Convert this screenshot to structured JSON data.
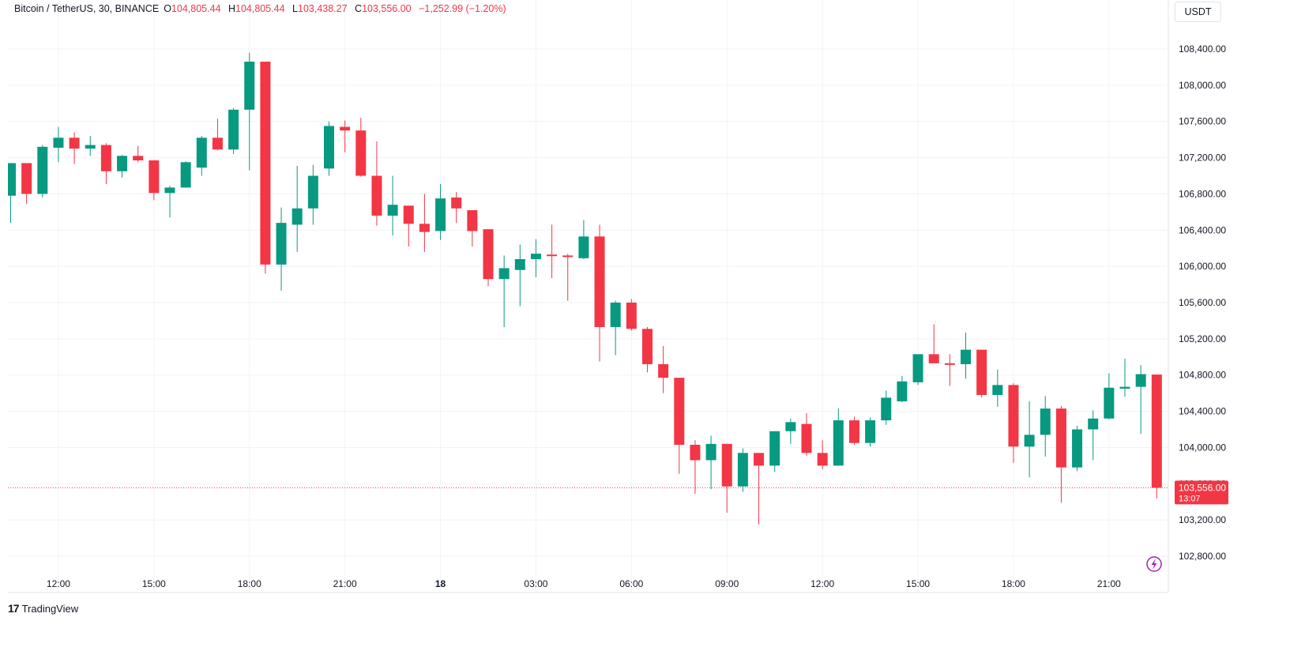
{
  "legend": {
    "symbol": "Bitcoin / TetherUS, 30, BINANCE",
    "o_label": "O",
    "o": "104,805.44",
    "h_label": "H",
    "h": "104,805.44",
    "l_label": "L",
    "l": "103,438.27",
    "c_label": "C",
    "c": "103,556.00",
    "change": "−1,252.99 (−1.20%)"
  },
  "currency": "USDT",
  "logo": {
    "mark": "17",
    "text": "TradingView"
  },
  "last_price": {
    "value": "103,556.00",
    "countdown": "13:07"
  },
  "colors": {
    "up": "#089981",
    "down": "#f23645",
    "grid": "#f0f3fa",
    "axis_text": "#131722"
  },
  "icons": {
    "flash": "lightning-icon"
  },
  "chart_data": {
    "type": "candlestick",
    "interval_minutes": 30,
    "ylim": [
      102700,
      108650
    ],
    "y_ticks": [
      102800,
      103200,
      103600,
      104000,
      104400,
      104800,
      105200,
      105600,
      106000,
      106400,
      106800,
      107200,
      107600,
      108000,
      108400
    ],
    "y_tick_labels": [
      "102,800.00",
      "103,200.00",
      "103,600.00",
      "104,000.00",
      "104,400.00",
      "104,800.00",
      "105,200.00",
      "105,600.00",
      "106,000.00",
      "106,400.00",
      "106,800.00",
      "107,200.00",
      "107,600.00",
      "108,000.00",
      "108,400.00"
    ],
    "x_ticks": [
      {
        "time": "12:00",
        "label": "12:00",
        "bold": false
      },
      {
        "time": "15:00",
        "label": "15:00",
        "bold": false
      },
      {
        "time": "18:00",
        "label": "18:00",
        "bold": false
      },
      {
        "time": "21:00",
        "label": "21:00",
        "bold": false
      },
      {
        "time": "00:00",
        "label": "18",
        "bold": true
      },
      {
        "time": "03:00",
        "label": "03:00",
        "bold": false
      },
      {
        "time": "06:00",
        "label": "06:00",
        "bold": false
      },
      {
        "time": "09:00",
        "label": "09:00",
        "bold": false
      },
      {
        "time": "12:00",
        "label": "12:00",
        "bold": false
      },
      {
        "time": "15:00",
        "label": "15:00",
        "bold": false
      },
      {
        "time": "18:00",
        "label": "18:00",
        "bold": false
      },
      {
        "time": "21:00",
        "label": "21:00",
        "bold": false
      }
    ],
    "first_bar_time": "10:30",
    "candles": [
      {
        "o": 106780,
        "h": 107140,
        "l": 106480,
        "c": 107140
      },
      {
        "o": 107140,
        "h": 107140,
        "l": 106690,
        "c": 106800
      },
      {
        "o": 106800,
        "h": 107340,
        "l": 106760,
        "c": 107320
      },
      {
        "o": 107310,
        "h": 107540,
        "l": 107150,
        "c": 107420
      },
      {
        "o": 107420,
        "h": 107480,
        "l": 107130,
        "c": 107300
      },
      {
        "o": 107300,
        "h": 107440,
        "l": 107220,
        "c": 107340
      },
      {
        "o": 107340,
        "h": 107360,
        "l": 106910,
        "c": 107050
      },
      {
        "o": 107050,
        "h": 107230,
        "l": 106980,
        "c": 107220
      },
      {
        "o": 107220,
        "h": 107330,
        "l": 107150,
        "c": 107170
      },
      {
        "o": 107170,
        "h": 107170,
        "l": 106730,
        "c": 106810
      },
      {
        "o": 106810,
        "h": 106890,
        "l": 106540,
        "c": 106870
      },
      {
        "o": 106870,
        "h": 107160,
        "l": 106870,
        "c": 107150
      },
      {
        "o": 107090,
        "h": 107440,
        "l": 107000,
        "c": 107420
      },
      {
        "o": 107420,
        "h": 107630,
        "l": 107280,
        "c": 107290
      },
      {
        "o": 107290,
        "h": 107750,
        "l": 107240,
        "c": 107730
      },
      {
        "o": 107730,
        "h": 108360,
        "l": 107060,
        "c": 108260
      },
      {
        "o": 108260,
        "h": 108260,
        "l": 105920,
        "c": 106020
      },
      {
        "o": 106020,
        "h": 106650,
        "l": 105730,
        "c": 106480
      },
      {
        "o": 106460,
        "h": 107110,
        "l": 106160,
        "c": 106640
      },
      {
        "o": 106640,
        "h": 107120,
        "l": 106460,
        "c": 107000
      },
      {
        "o": 107080,
        "h": 107600,
        "l": 107000,
        "c": 107550
      },
      {
        "o": 107540,
        "h": 107610,
        "l": 107260,
        "c": 107500
      },
      {
        "o": 107500,
        "h": 107640,
        "l": 106990,
        "c": 107000
      },
      {
        "o": 107000,
        "h": 107380,
        "l": 106450,
        "c": 106560
      },
      {
        "o": 106560,
        "h": 107000,
        "l": 106340,
        "c": 106680
      },
      {
        "o": 106670,
        "h": 106670,
        "l": 106220,
        "c": 106470
      },
      {
        "o": 106470,
        "h": 106800,
        "l": 106160,
        "c": 106380
      },
      {
        "o": 106390,
        "h": 106910,
        "l": 106290,
        "c": 106750
      },
      {
        "o": 106760,
        "h": 106820,
        "l": 106480,
        "c": 106640
      },
      {
        "o": 106620,
        "h": 106620,
        "l": 106220,
        "c": 106390
      },
      {
        "o": 106410,
        "h": 106400,
        "l": 105780,
        "c": 105860
      },
      {
        "o": 105860,
        "h": 106120,
        "l": 105330,
        "c": 105980
      },
      {
        "o": 105960,
        "h": 106240,
        "l": 105560,
        "c": 106080
      },
      {
        "o": 106080,
        "h": 106300,
        "l": 105880,
        "c": 106140
      },
      {
        "o": 106130,
        "h": 106460,
        "l": 105870,
        "c": 106120
      },
      {
        "o": 106120,
        "h": 106140,
        "l": 105620,
        "c": 106110
      },
      {
        "o": 106090,
        "h": 106510,
        "l": 106080,
        "c": 106330
      },
      {
        "o": 106330,
        "h": 106460,
        "l": 104950,
        "c": 105330
      },
      {
        "o": 105330,
        "h": 105620,
        "l": 105020,
        "c": 105600
      },
      {
        "o": 105600,
        "h": 105640,
        "l": 105290,
        "c": 105310
      },
      {
        "o": 105310,
        "h": 105330,
        "l": 104830,
        "c": 104920
      },
      {
        "o": 104920,
        "h": 105120,
        "l": 104600,
        "c": 104770
      },
      {
        "o": 104770,
        "h": 104770,
        "l": 103710,
        "c": 104030
      },
      {
        "o": 104030,
        "h": 104080,
        "l": 103490,
        "c": 103860
      },
      {
        "o": 103860,
        "h": 104130,
        "l": 103540,
        "c": 104040
      },
      {
        "o": 104040,
        "h": 104040,
        "l": 103280,
        "c": 103570
      },
      {
        "o": 103570,
        "h": 103990,
        "l": 103510,
        "c": 103940
      },
      {
        "o": 103940,
        "h": 103940,
        "l": 103150,
        "c": 103800
      },
      {
        "o": 103800,
        "h": 104180,
        "l": 103730,
        "c": 104180
      },
      {
        "o": 104180,
        "h": 104320,
        "l": 104040,
        "c": 104280
      },
      {
        "o": 104260,
        "h": 104380,
        "l": 103910,
        "c": 103940
      },
      {
        "o": 103940,
        "h": 104080,
        "l": 103760,
        "c": 103800
      },
      {
        "o": 103800,
        "h": 104430,
        "l": 103800,
        "c": 104300
      },
      {
        "o": 104300,
        "h": 104340,
        "l": 104030,
        "c": 104050
      },
      {
        "o": 104050,
        "h": 104330,
        "l": 104010,
        "c": 104300
      },
      {
        "o": 104300,
        "h": 104630,
        "l": 104250,
        "c": 104550
      },
      {
        "o": 104510,
        "h": 104790,
        "l": 104500,
        "c": 104730
      },
      {
        "o": 104720,
        "h": 105030,
        "l": 104690,
        "c": 105030
      },
      {
        "o": 105030,
        "h": 105360,
        "l": 104940,
        "c": 104930
      },
      {
        "o": 104930,
        "h": 105030,
        "l": 104680,
        "c": 104920
      },
      {
        "o": 104920,
        "h": 105270,
        "l": 104760,
        "c": 105080
      },
      {
        "o": 105080,
        "h": 105080,
        "l": 104550,
        "c": 104580
      },
      {
        "o": 104580,
        "h": 104860,
        "l": 104450,
        "c": 104690
      },
      {
        "o": 104690,
        "h": 104710,
        "l": 103830,
        "c": 104010
      },
      {
        "o": 104010,
        "h": 104510,
        "l": 103670,
        "c": 104140
      },
      {
        "o": 104140,
        "h": 104570,
        "l": 103900,
        "c": 104430
      },
      {
        "o": 104430,
        "h": 104460,
        "l": 103390,
        "c": 103780
      },
      {
        "o": 103780,
        "h": 104240,
        "l": 103740,
        "c": 104200
      },
      {
        "o": 104200,
        "h": 104410,
        "l": 103860,
        "c": 104320
      },
      {
        "o": 104320,
        "h": 104820,
        "l": 104310,
        "c": 104660
      },
      {
        "o": 104650,
        "h": 104980,
        "l": 104560,
        "c": 104670
      },
      {
        "o": 104670,
        "h": 104910,
        "l": 104150,
        "c": 104810
      },
      {
        "o": 104805.44,
        "h": 104805.44,
        "l": 103438.27,
        "c": 103556.0
      }
    ]
  }
}
